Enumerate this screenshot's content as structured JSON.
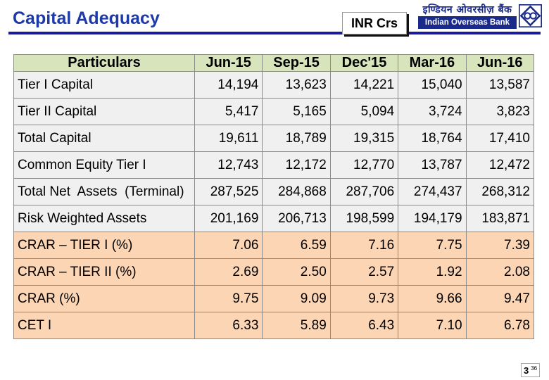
{
  "header": {
    "title": "Capital Adequacy",
    "unit": "INR Crs",
    "logo_hindi": "इण्डियन ओवरसीज़ बैंक",
    "logo_english": "Indian Overseas Bank"
  },
  "table": {
    "columns": [
      "Particulars",
      "Jun-15",
      "Sep-15",
      "Dec'15",
      "Mar-16",
      "Jun-16"
    ],
    "rows": [
      {
        "label": "Tier I Capital",
        "values": [
          "14,194",
          "13,623",
          "14,221",
          "15,040",
          "13,587"
        ]
      },
      {
        "label": "Tier II Capital",
        "values": [
          "5,417",
          "5,165",
          "5,094",
          "3,724",
          "3,823"
        ]
      },
      {
        "label": "Total Capital",
        "values": [
          "19,611",
          "18,789",
          "19,315",
          "18,764",
          "17,410"
        ]
      },
      {
        "label": "Common Equity Tier I",
        "values": [
          "12,743",
          "12,172",
          "12,770",
          "13,787",
          "12,472"
        ]
      },
      {
        "label": "Total Net  Assets  (Terminal)",
        "values": [
          "287,525",
          "284,868",
          "287,706",
          "274,437",
          "268,312"
        ]
      },
      {
        "label": "Risk Weighted Assets",
        "values": [
          "201,169",
          "206,713",
          "198,599",
          "194,179",
          "183,871"
        ]
      },
      {
        "label": "CRAR – TIER I (%)",
        "values": [
          "7.06",
          "6.59",
          "7.16",
          "7.75",
          "7.39"
        ]
      },
      {
        "label": "CRAR – TIER II (%)",
        "values": [
          "2.69",
          "2.50",
          "2.57",
          "1.92",
          "2.08"
        ]
      },
      {
        "label": "CRAR (%)",
        "values": [
          "9.75",
          "9.09",
          "9.73",
          "9.66",
          "9.47"
        ]
      },
      {
        "label": "CET I",
        "values": [
          "6.33",
          "5.89",
          "6.43",
          "7.10",
          "6.78"
        ]
      }
    ]
  },
  "footer": {
    "page_number": "3",
    "page_sub": "36"
  },
  "colors": {
    "title": "#1e3aa8",
    "rule": "#1a1a9a",
    "header_row": "#d8e4bc",
    "gray_rows": "#f0f0f0",
    "peach_rows": "#fcd5b4",
    "logo_navy": "#1a2a8a"
  }
}
